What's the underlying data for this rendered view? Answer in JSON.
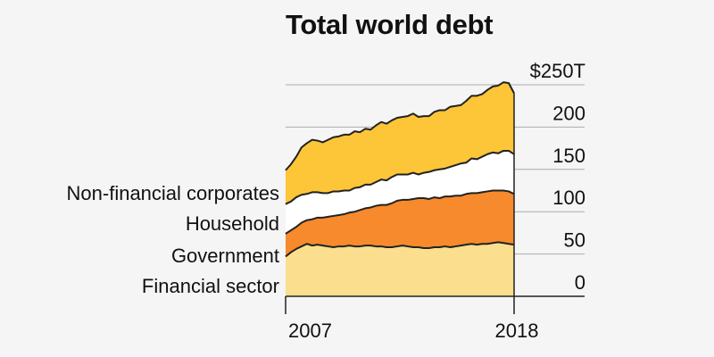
{
  "title": "Total world debt",
  "chart_data": {
    "type": "area",
    "stacked": true,
    "title": "Total world debt",
    "xlabel": "",
    "ylabel": "",
    "x_start": 2005.5,
    "x_end": 2018.5,
    "x_ticks": [
      2007,
      2018
    ],
    "y_ticks": [
      {
        "value": 0,
        "label": "0"
      },
      {
        "value": 50,
        "label": "50"
      },
      {
        "value": 100,
        "label": "100"
      },
      {
        "value": 150,
        "label": "150"
      },
      {
        "value": 200,
        "label": "200"
      },
      {
        "value": 250,
        "label": "$250T"
      }
    ],
    "ylim": [
      0,
      250
    ],
    "grid": true,
    "series": [
      {
        "name": "Financial sector",
        "color": "#fbdf8f",
        "values": [
          47,
          52,
          56,
          59,
          62,
          60,
          61,
          60,
          59,
          58,
          59,
          59,
          60,
          59,
          59,
          60,
          60,
          59,
          59,
          58,
          58,
          59,
          60,
          59,
          58,
          58,
          57,
          57,
          58,
          58,
          59,
          58,
          59,
          60,
          61,
          62,
          61,
          62,
          62,
          63,
          64,
          63,
          62,
          61
        ]
      },
      {
        "name": "Government",
        "color": "#f78a2c",
        "values": [
          27,
          26,
          26,
          28,
          28,
          31,
          32,
          33,
          35,
          37,
          37,
          38,
          39,
          41,
          43,
          44,
          45,
          48,
          49,
          50,
          52,
          54,
          54,
          55,
          57,
          58,
          59,
          58,
          59,
          58,
          59,
          60,
          60,
          59,
          60,
          60,
          61,
          61,
          62,
          62,
          61,
          62,
          62,
          60
        ]
      },
      {
        "name": "Household",
        "color": "#ffffff",
        "values": [
          35,
          34,
          35,
          33,
          31,
          32,
          30,
          29,
          28,
          29,
          28,
          28,
          26,
          28,
          27,
          28,
          27,
          28,
          30,
          29,
          31,
          31,
          30,
          30,
          31,
          28,
          30,
          32,
          32,
          34,
          33,
          35,
          36,
          38,
          37,
          41,
          40,
          42,
          44,
          45,
          44,
          47,
          48,
          47
        ]
      },
      {
        "name": "Non-financial corporates",
        "color": "#fdc538",
        "values": [
          40,
          44,
          48,
          56,
          60,
          62,
          61,
          60,
          63,
          64,
          65,
          66,
          66,
          67,
          65,
          66,
          65,
          67,
          68,
          67,
          67,
          67,
          68,
          69,
          70,
          68,
          67,
          66,
          69,
          70,
          69,
          71,
          70,
          69,
          73,
          74,
          75,
          74,
          76,
          78,
          80,
          81,
          80,
          72
        ]
      }
    ]
  }
}
